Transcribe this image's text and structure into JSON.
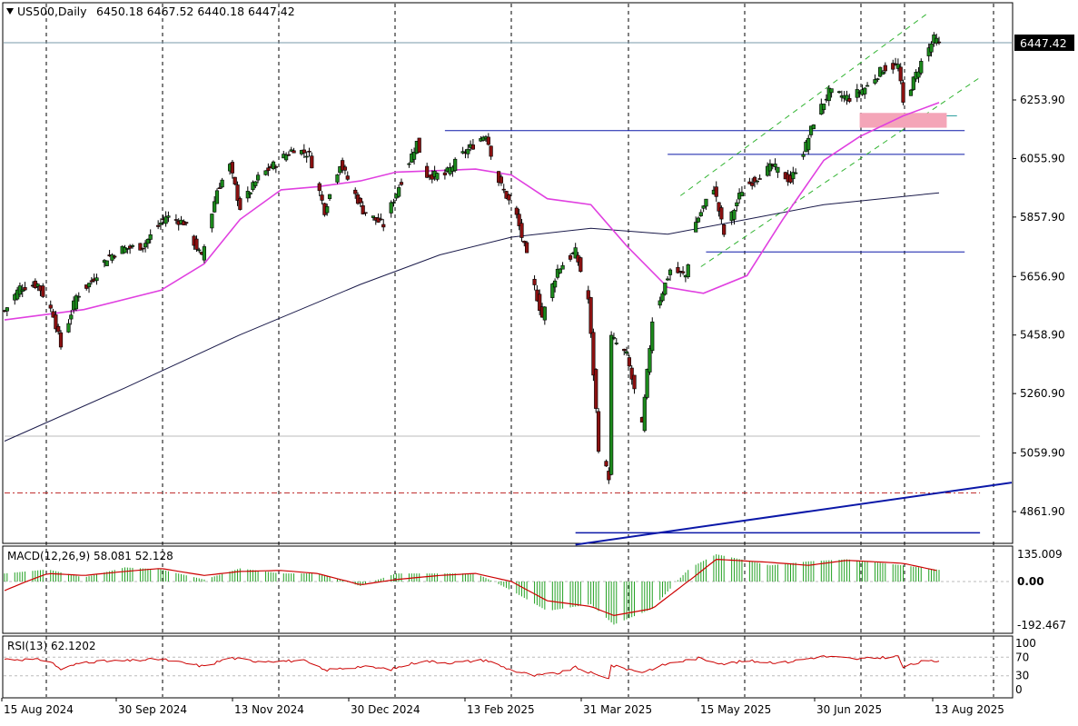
{
  "header": {
    "symbol_label": "US500,Daily",
    "ohlc_label": "6450.18 6467.52 6440.18 6447.42",
    "menu_icon": "triangle-down-icon"
  },
  "price_scale": {
    "labels": [
      "6253.90",
      "6055.90",
      "5857.90",
      "5656.90",
      "5458.90",
      "5260.90",
      "5059.90",
      "4861.90"
    ],
    "values": [
      6253.9,
      6055.9,
      5857.9,
      5656.9,
      5458.9,
      5260.9,
      5059.9,
      4861.9
    ],
    "current_price_label": "6447.42",
    "current_price": 6447.42
  },
  "macd_panel": {
    "label": "MACD(12,26,9) 58.081 52.128",
    "scale_labels": [
      "135.009",
      "0.00",
      "-192.467"
    ],
    "scale_values": [
      135.009,
      0,
      -192.467
    ]
  },
  "rsi_panel": {
    "label": "RSI(13) 62.1202",
    "scale_labels": [
      "100",
      "70",
      "30",
      "0"
    ],
    "scale_values": [
      100,
      70,
      30,
      0
    ]
  },
  "time_axis": {
    "labels": [
      "15 Aug 2024",
      "30 Sep 2024",
      "13 Nov 2024",
      "30 Dec 2024",
      "13 Feb 2025",
      "31 Mar 2025",
      "15 May 2025",
      "30 Jun 2025",
      "13 Aug 2025"
    ]
  },
  "colors": {
    "bull_candle": "#1c8a1c",
    "bear_candle": "#8b1010",
    "ma_fast": "#e040e0",
    "ma_slow": "#1a1a4a",
    "support_lines": "#0b18a8",
    "macd_histogram": "#22a022",
    "macd_signal": "#cc0000",
    "rsi_line": "#cc0000",
    "channel": "#32b432",
    "zone": "#f4a5b8"
  },
  "chart_data": [
    {
      "type": "candlestick",
      "panel": "price",
      "title": "US500,Daily",
      "symbol": "US500",
      "timeframe": "Daily",
      "last_bar": {
        "open": 6450.18,
        "high": 6467.52,
        "low": 6440.18,
        "close": 6447.42
      },
      "x_range": [
        "2024-08-15",
        "2025-08-20"
      ],
      "ylim": [
        4790,
        6560
      ],
      "close_path": [
        [
          "2024-08-15",
          5540
        ],
        [
          "2024-08-21",
          5620
        ],
        [
          "2024-08-28",
          5630
        ],
        [
          "2024-09-03",
          5530
        ],
        [
          "2024-09-06",
          5420
        ],
        [
          "2024-09-12",
          5590
        ],
        [
          "2024-09-18",
          5640
        ],
        [
          "2024-09-24",
          5720
        ],
        [
          "2024-09-30",
          5750
        ],
        [
          "2024-10-08",
          5760
        ],
        [
          "2024-10-17",
          5860
        ],
        [
          "2024-10-24",
          5840
        ],
        [
          "2024-10-31",
          5720
        ],
        [
          "2024-11-06",
          5950
        ],
        [
          "2024-11-11",
          6030
        ],
        [
          "2024-11-15",
          5890
        ],
        [
          "2024-11-22",
          5990
        ],
        [
          "2024-11-29",
          6040
        ],
        [
          "2024-12-06",
          6090
        ],
        [
          "2024-12-12",
          6070
        ],
        [
          "2024-12-18",
          5880
        ],
        [
          "2024-12-24",
          6040
        ],
        [
          "2025-01-02",
          5880
        ],
        [
          "2025-01-10",
          5830
        ],
        [
          "2025-01-15",
          5940
        ],
        [
          "2025-01-23",
          6110
        ],
        [
          "2025-01-27",
          6000
        ],
        [
          "2025-02-03",
          6000
        ],
        [
          "2025-02-10",
          6070
        ],
        [
          "2025-02-19",
          6140
        ],
        [
          "2025-02-24",
          5980
        ],
        [
          "2025-03-03",
          5860
        ],
        [
          "2025-03-10",
          5620
        ],
        [
          "2025-03-13",
          5520
        ],
        [
          "2025-03-19",
          5680
        ],
        [
          "2025-03-26",
          5740
        ],
        [
          "2025-03-31",
          5580
        ],
        [
          "2025-04-04",
          5080
        ],
        [
          "2025-04-08",
          4980
        ],
        [
          "2025-04-09",
          5450
        ],
        [
          "2025-04-15",
          5390
        ],
        [
          "2025-04-21",
          5150
        ],
        [
          "2025-04-25",
          5510
        ],
        [
          "2025-05-02",
          5680
        ],
        [
          "2025-05-08",
          5660
        ],
        [
          "2025-05-12",
          5840
        ],
        [
          "2025-05-19",
          5960
        ],
        [
          "2025-05-23",
          5800
        ],
        [
          "2025-05-30",
          5950
        ],
        [
          "2025-06-06",
          6000
        ],
        [
          "2025-06-11",
          6030
        ],
        [
          "2025-06-18",
          5980
        ],
        [
          "2025-06-24",
          6100
        ],
        [
          "2025-06-27",
          6180
        ],
        [
          "2025-07-03",
          6280
        ],
        [
          "2025-07-11",
          6260
        ],
        [
          "2025-07-18",
          6300
        ],
        [
          "2025-07-24",
          6360
        ],
        [
          "2025-07-30",
          6370
        ],
        [
          "2025-08-01",
          6240
        ],
        [
          "2025-08-08",
          6380
        ],
        [
          "2025-08-13",
          6460
        ],
        [
          "2025-08-15",
          6447.42
        ]
      ],
      "fast_ma": [
        [
          "2024-08-15",
          5510
        ],
        [
          "2024-09-15",
          5545
        ],
        [
          "2024-10-15",
          5610
        ],
        [
          "2024-11-01",
          5700
        ],
        [
          "2024-11-15",
          5850
        ],
        [
          "2024-12-01",
          5950
        ],
        [
          "2024-12-15",
          5960
        ],
        [
          "2025-01-01",
          5980
        ],
        [
          "2025-01-15",
          6010
        ],
        [
          "2025-02-01",
          6015
        ],
        [
          "2025-02-15",
          6020
        ],
        [
          "2025-03-01",
          6000
        ],
        [
          "2025-03-15",
          5920
        ],
        [
          "2025-04-01",
          5900
        ],
        [
          "2025-04-15",
          5760
        ],
        [
          "2025-05-01",
          5620
        ],
        [
          "2025-05-15",
          5600
        ],
        [
          "2025-06-01",
          5660
        ],
        [
          "2025-06-15",
          5850
        ],
        [
          "2025-07-01",
          6050
        ],
        [
          "2025-07-15",
          6130
        ],
        [
          "2025-08-01",
          6200
        ],
        [
          "2025-08-15",
          6245
        ]
      ],
      "slow_ma": [
        [
          "2024-08-15",
          5100
        ],
        [
          "2024-10-01",
          5280
        ],
        [
          "2024-11-15",
          5460
        ],
        [
          "2025-01-01",
          5630
        ],
        [
          "2025-02-01",
          5730
        ],
        [
          "2025-03-01",
          5790
        ],
        [
          "2025-04-01",
          5820
        ],
        [
          "2025-05-01",
          5800
        ],
        [
          "2025-06-01",
          5850
        ],
        [
          "2025-07-01",
          5900
        ],
        [
          "2025-08-15",
          5940
        ]
      ],
      "horizontal_levels": [
        {
          "value": 6150,
          "from": "2025-02-03",
          "to": "2025-08-25"
        },
        {
          "value": 6070,
          "from": "2025-05-01",
          "to": "2025-08-25"
        },
        {
          "value": 5740,
          "from": "2025-05-16",
          "to": "2025-08-25"
        },
        {
          "value": 4790,
          "from": "2025-03-26",
          "to": "2025-08-31"
        },
        {
          "value": 6200,
          "from": "2025-07-20",
          "to": "2025-08-22",
          "style": "light"
        },
        {
          "value": 5117,
          "from": "2024-08-15",
          "to": "2025-08-31",
          "style": "grey"
        },
        {
          "value": 4925,
          "from": "2024-08-15",
          "to": "2025-08-31",
          "style": "dash-dot"
        }
      ],
      "trendline": [
        [
          "2025-03-26",
          4750
        ],
        [
          "2025-08-31",
          4960
        ]
      ],
      "channel_lines": [
        [
          [
            "2025-05-06",
            5930
          ],
          [
            "2025-08-11",
            6550
          ]
        ],
        [
          [
            "2025-05-14",
            5690
          ],
          [
            "2025-08-31",
            6330
          ]
        ]
      ],
      "zone": {
        "from": "2025-07-15",
        "to": "2025-08-18",
        "low": 6160,
        "high": 6210
      }
    },
    {
      "type": "bar",
      "panel": "macd",
      "title": "MACD(12,26,9) 58.081 52.128",
      "ylim": [
        -192.467,
        135.009
      ],
      "macd_path": [
        [
          "2024-08-15",
          40
        ],
        [
          "2024-09-01",
          60
        ],
        [
          "2024-09-15",
          20
        ],
        [
          "2024-10-01",
          70
        ],
        [
          "2024-10-15",
          60
        ],
        [
          "2024-11-01",
          10
        ],
        [
          "2024-11-15",
          65
        ],
        [
          "2024-12-01",
          40
        ],
        [
          "2024-12-15",
          40
        ],
        [
          "2025-01-01",
          -20
        ],
        [
          "2025-01-15",
          40
        ],
        [
          "2025-02-01",
          40
        ],
        [
          "2025-02-15",
          40
        ],
        [
          "2025-03-01",
          -40
        ],
        [
          "2025-03-15",
          -130
        ],
        [
          "2025-04-01",
          -100
        ],
        [
          "2025-04-10",
          -190
        ],
        [
          "2025-04-25",
          -120
        ],
        [
          "2025-05-10",
          70
        ],
        [
          "2025-05-20",
          135
        ],
        [
          "2025-06-10",
          80
        ],
        [
          "2025-06-25",
          100
        ],
        [
          "2025-07-10",
          110
        ],
        [
          "2025-08-01",
          80
        ],
        [
          "2025-08-15",
          58
        ]
      ],
      "signal_path": [
        [
          "2024-08-15",
          -40
        ],
        [
          "2024-09-01",
          40
        ],
        [
          "2024-09-15",
          30
        ],
        [
          "2024-10-01",
          50
        ],
        [
          "2024-10-15",
          65
        ],
        [
          "2024-11-01",
          30
        ],
        [
          "2024-11-15",
          50
        ],
        [
          "2024-12-01",
          55
        ],
        [
          "2024-12-15",
          40
        ],
        [
          "2025-01-01",
          -15
        ],
        [
          "2025-01-15",
          10
        ],
        [
          "2025-02-01",
          30
        ],
        [
          "2025-02-15",
          40
        ],
        [
          "2025-03-01",
          0
        ],
        [
          "2025-03-15",
          -85
        ],
        [
          "2025-04-01",
          -110
        ],
        [
          "2025-04-10",
          -150
        ],
        [
          "2025-04-25",
          -120
        ],
        [
          "2025-05-10",
          10
        ],
        [
          "2025-05-20",
          110
        ],
        [
          "2025-06-10",
          95
        ],
        [
          "2025-06-25",
          80
        ],
        [
          "2025-07-10",
          105
        ],
        [
          "2025-08-01",
          90
        ],
        [
          "2025-08-15",
          52
        ]
      ]
    },
    {
      "type": "line",
      "panel": "rsi",
      "title": "RSI(13) 62.1202",
      "ylim": [
        0,
        100
      ],
      "rsi_path": [
        [
          "2024-08-15",
          66
        ],
        [
          "2024-09-01",
          64
        ],
        [
          "2024-09-06",
          44
        ],
        [
          "2024-09-15",
          60
        ],
        [
          "2024-10-01",
          62
        ],
        [
          "2024-10-15",
          66
        ],
        [
          "2024-11-01",
          50
        ],
        [
          "2024-11-11",
          69
        ],
        [
          "2024-11-20",
          62
        ],
        [
          "2024-12-10",
          62
        ],
        [
          "2024-12-18",
          42
        ],
        [
          "2025-01-01",
          50
        ],
        [
          "2025-01-13",
          44
        ],
        [
          "2025-01-25",
          62
        ],
        [
          "2025-02-05",
          58
        ],
        [
          "2025-02-19",
          64
        ],
        [
          "2025-03-01",
          42
        ],
        [
          "2025-03-10",
          30
        ],
        [
          "2025-03-20",
          36
        ],
        [
          "2025-03-26",
          48
        ],
        [
          "2025-04-04",
          30
        ],
        [
          "2025-04-08",
          26
        ],
        [
          "2025-04-09",
          52
        ],
        [
          "2025-04-21",
          38
        ],
        [
          "2025-05-01",
          56
        ],
        [
          "2025-05-13",
          68
        ],
        [
          "2025-05-23",
          56
        ],
        [
          "2025-06-01",
          62
        ],
        [
          "2025-06-15",
          58
        ],
        [
          "2025-06-30",
          72
        ],
        [
          "2025-07-15",
          66
        ],
        [
          "2025-07-30",
          72
        ],
        [
          "2025-08-01",
          48
        ],
        [
          "2025-08-08",
          60
        ],
        [
          "2025-08-15",
          62.12
        ]
      ]
    }
  ]
}
